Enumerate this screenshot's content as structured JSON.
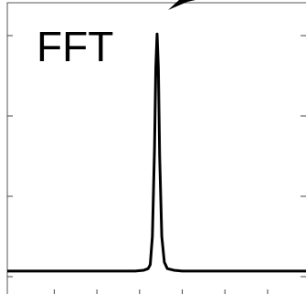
{
  "chart_data": {
    "type": "line",
    "title": "FFT",
    "x": [
      -0.1,
      0.5,
      1,
      1.5,
      2,
      2.5,
      2.9,
      3.1,
      3.2,
      3.25,
      3.3,
      3.35,
      3.38,
      3.41,
      3.44,
      3.47,
      3.52,
      3.58,
      3.65,
      3.8,
      4,
      4.5,
      5,
      5.5,
      6,
      6.5,
      6.9
    ],
    "series": [
      {
        "color": "#000000",
        "values": [
          0.07,
          0.07,
          0.07,
          0.07,
          0.07,
          0.07,
          0.07,
          0.08,
          0.1,
          0.15,
          0.5,
          1.6,
          2.6,
          3.02,
          2.6,
          1.5,
          0.5,
          0.18,
          0.1,
          0.08,
          0.07,
          0.07,
          0.07,
          0.07,
          0.07,
          0.07,
          0.07
        ]
      }
    ],
    "xlim": [
      -0.1,
      6.9
    ],
    "xticks": [
      1,
      2,
      3,
      4,
      5,
      6
    ],
    "ylim": [
      -0.216,
      3.409
    ],
    "yticks": [
      0,
      1,
      2,
      3
    ],
    "grid": false
  }
}
